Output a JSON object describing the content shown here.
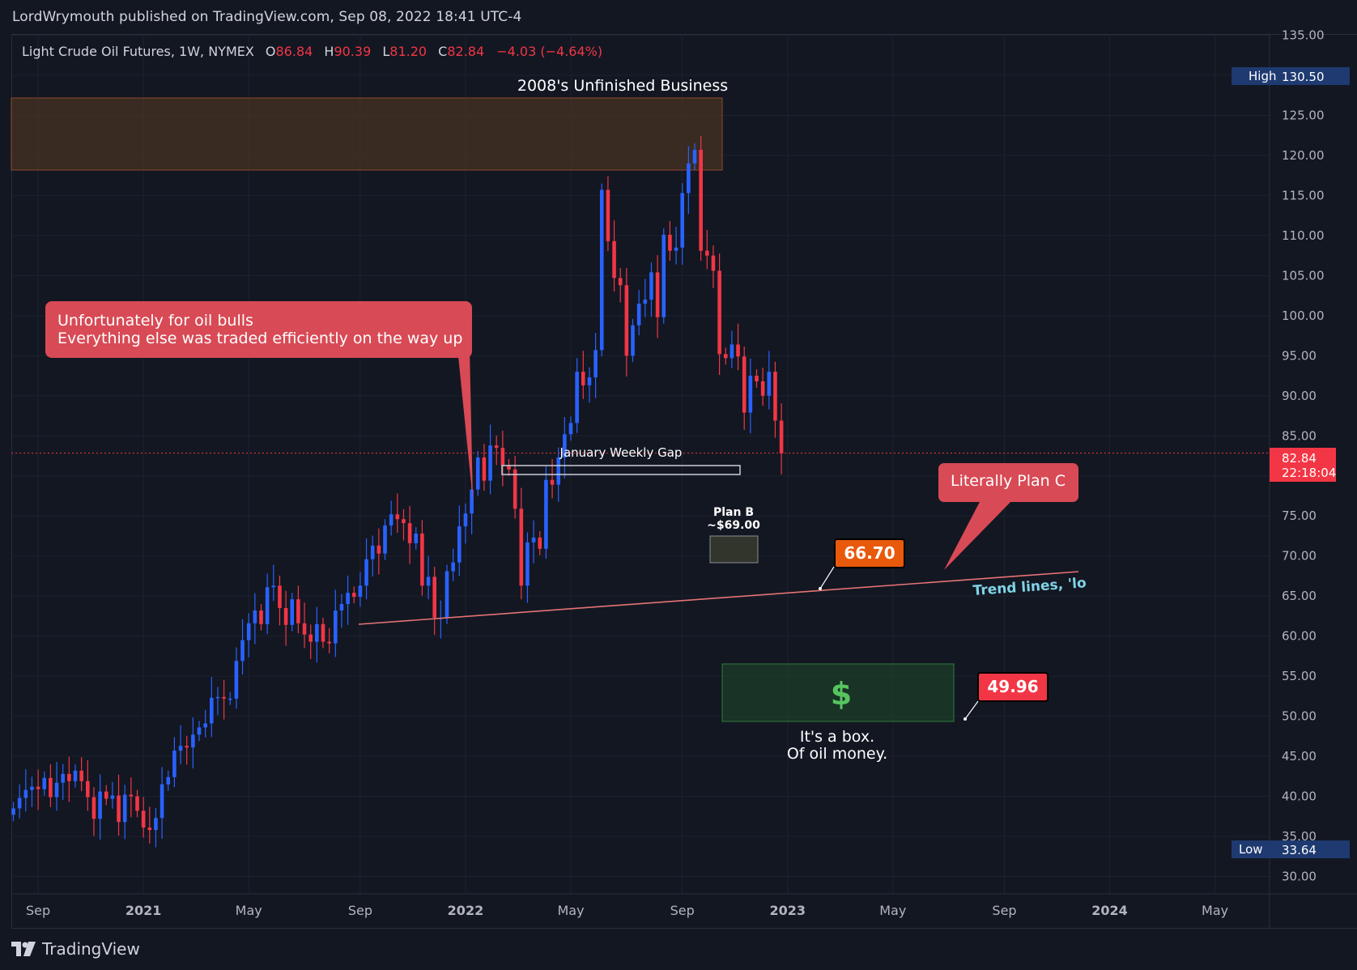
{
  "publish_line": "LordWrymouth published on TradingView.com, Sep 08, 2022 18:41 UTC-4",
  "brand": "TradingView",
  "colors": {
    "bg": "#131722",
    "grid": "#1e2230",
    "up": "#2962ff",
    "down": "#f23645",
    "text": "#d1d4dc",
    "axis_text": "#b2b5be",
    "trend": "#e57373"
  },
  "legend": {
    "symbol": "Light Crude Oil Futures, 1W, NYMEX",
    "o_label": "O",
    "o_value": "86.84",
    "h_label": "H",
    "h_value": "90.39",
    "l_label": "L",
    "l_value": "81.20",
    "c_label": "C",
    "c_value": "82.84",
    "change": "−4.03 (−4.64%)"
  },
  "chart_data": {
    "type": "candlestick",
    "title": "Light Crude Oil Futures, 1W, NYMEX",
    "interval": "1W",
    "ylim": [
      28,
      137
    ],
    "y_ticks": [
      "135.00",
      "130.00",
      "125.00",
      "120.00",
      "115.00",
      "110.00",
      "105.00",
      "100.00",
      "95.00",
      "90.00",
      "85.00",
      "80.00",
      "75.00",
      "70.00",
      "65.00",
      "60.00",
      "55.00",
      "50.00",
      "45.00",
      "40.00",
      "35.00",
      "30.00"
    ],
    "y_tick_values": [
      135,
      130,
      125,
      120,
      115,
      110,
      105,
      100,
      95,
      90,
      85,
      80,
      75,
      70,
      65,
      60,
      55,
      50,
      45,
      40,
      35,
      30
    ],
    "x_ticks": [
      "Sep",
      "2021",
      "May",
      "Sep",
      "2022",
      "May",
      "Sep",
      "2023",
      "May",
      "Sep",
      "2024",
      "May"
    ],
    "x_tick_weeks": [
      4,
      21,
      38,
      56,
      73,
      90,
      108,
      125,
      142,
      160,
      177,
      194
    ],
    "x_tick_bold": [
      false,
      true,
      false,
      false,
      true,
      false,
      false,
      true,
      false,
      false,
      true,
      false
    ],
    "closes": [
      38.5,
      39.8,
      40.8,
      41.2,
      40.9,
      42.3,
      39.9,
      41.7,
      42.8,
      41.9,
      43.2,
      41.9,
      39.9,
      37.2,
      40.6,
      39.7,
      40.1,
      36.8,
      40.2,
      40.0,
      38.2,
      36.1,
      35.8,
      37.3,
      41.5,
      42.4,
      45.7,
      46.3,
      46.1,
      47.7,
      48.6,
      49.1,
      52.3,
      52.4,
      52.2,
      52.2,
      56.9,
      59.5,
      61.6,
      63.2,
      61.5,
      66.1,
      66.3,
      63.5,
      61.4,
      64.6,
      61.6,
      60.2,
      59.3,
      61.5,
      59.3,
      59.1,
      63.2,
      64.0,
      65.4,
      64.9,
      66.3,
      69.6,
      71.3,
      70.3,
      73.8,
      75.2,
      74.6,
      74.1,
      71.6,
      72.8,
      66.3,
      67.4,
      62.3,
      62.3,
      68.1,
      69.2,
      73.7,
      75.3,
      78.3,
      82.3,
      79.4,
      83.8,
      83.5,
      81.3,
      80.8,
      75.9,
      66.3,
      71.7,
      72.3,
      70.9,
      79.5,
      78.9,
      82.3,
      85.2,
      86.6,
      93.0,
      91.3,
      92.3,
      95.7,
      115.7,
      109.3,
      104.7,
      103.8,
      95.0,
      98.8,
      101.5,
      102.0,
      105.4,
      99.8,
      110.1,
      108.1,
      108.5,
      115.3,
      119.0,
      120.7,
      108.1,
      107.5,
      105.6,
      95.2,
      94.7,
      96.4,
      94.9,
      87.9,
      92.5,
      91.8,
      90.0,
      93.0,
      86.9,
      82.8
    ],
    "hl_events": [
      {
        "label": "High",
        "value": "130.50"
      },
      {
        "label": "Low",
        "value": "33.64"
      }
    ],
    "last_price": {
      "value": "82.84",
      "countdown": "22:18:04"
    },
    "annotations": {
      "title_zone": "2008's Unfinished Business",
      "bulls_line1": "Unfortunately for oil bulls",
      "bulls_line2": "Everything else was traded efficiently on the way up",
      "gap_label": "January Weekly Gap",
      "plan_b_line1": "Plan B",
      "plan_b_line2": "~$69.00",
      "plan_c": "Literally Plan C",
      "price_trend": "66.70",
      "trend_text": "Trend lines, 'lo",
      "price_box": "49.96",
      "dollar": "$",
      "box_line1": "It's a box.",
      "box_line2": "Of oil money."
    }
  }
}
